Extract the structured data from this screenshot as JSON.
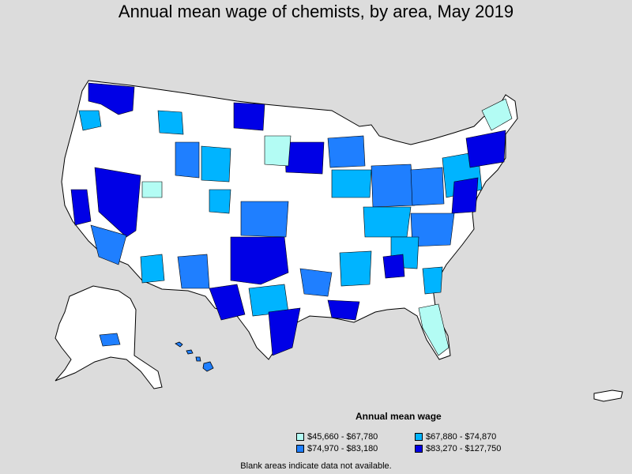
{
  "title": "Annual mean wage of chemists, by area, May 2019",
  "legend": {
    "title": "Annual mean wage",
    "items": [
      {
        "label": "$45,660 - $67,780",
        "color": "#b3fcf4"
      },
      {
        "label": "$67,880 - $74,870",
        "color": "#00b4ff"
      },
      {
        "label": "$74,970 - $83,180",
        "color": "#1f7fff"
      },
      {
        "label": "$83,270 - $127,750",
        "color": "#0000e6"
      }
    ]
  },
  "footnote": "Blank areas indicate data not available."
}
